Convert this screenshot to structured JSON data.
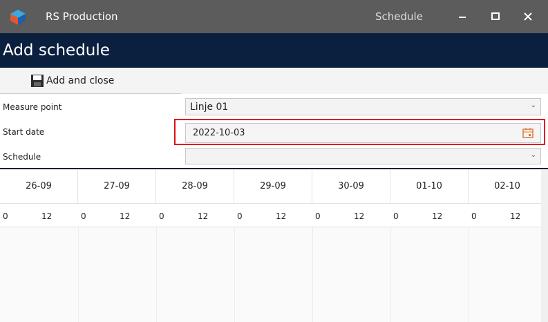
{
  "titlebar": {
    "app_name": "RS Production",
    "window_title": "Schedule"
  },
  "header": {
    "title": "Add schedule"
  },
  "toolbar": {
    "button": "Add and close"
  },
  "form": {
    "fields": [
      {
        "label": "Measure point",
        "value": "Linje 01"
      },
      {
        "label": "Start date",
        "value": "2022-10-03"
      },
      {
        "label": "Schedule"
      }
    ]
  },
  "timeline": {
    "days": [
      "26-09",
      "27-09",
      "28-09",
      "29-09",
      "30-09",
      "01-10",
      "02-10"
    ],
    "hours": [
      "0",
      "12"
    ]
  }
}
